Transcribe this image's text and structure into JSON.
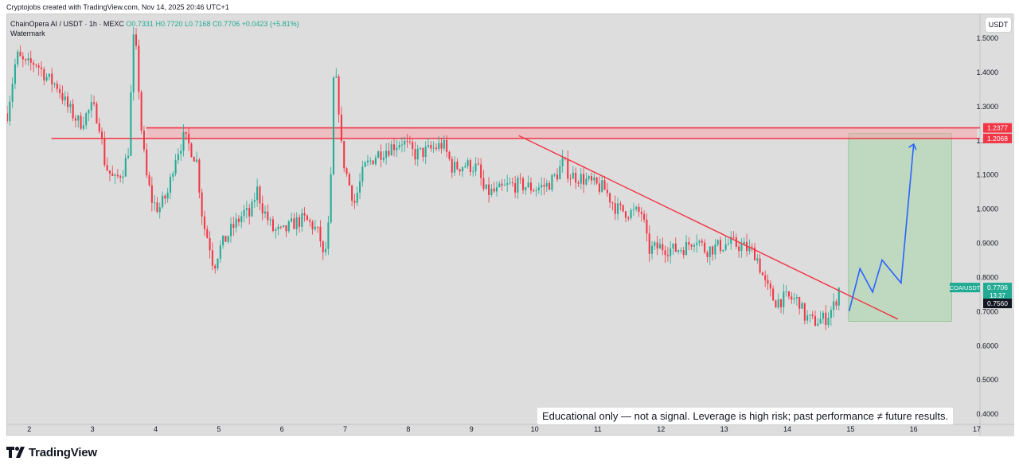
{
  "header": {
    "caption": "Cryptojobs created with TradingView.com, Nov 14, 2025 20:46 UTC+1",
    "symbol_line": "ChainOpera AI / USDT · 1h · MEXC",
    "ohlc": {
      "o": "O0.7331",
      "h": "H0.7720",
      "l": "L0.7168",
      "c": "C0.7706",
      "change": "+0.0423 (+5.81%)"
    },
    "watermark": "Watermark"
  },
  "price_scale": {
    "currency_label": "USDT"
  },
  "note": "Educational only — not a signal. Leverage is high risk; past performance ≠ future results.",
  "brand": {
    "name": "TradingView"
  },
  "colors": {
    "up": "#22ab94",
    "down": "#f23645",
    "resistance": "#f23645",
    "trendline": "#f23645",
    "projection": "#2962ff",
    "target_zone": "#a5d6a7"
  },
  "chart_data": {
    "type": "candlestick",
    "title": "ChainOpera AI / USDT",
    "timeframe": "1h",
    "exchange": "MEXC",
    "x_tick_labels": [
      "2",
      "3",
      "4",
      "5",
      "6",
      "7",
      "8",
      "9",
      "10",
      "11",
      "12",
      "13",
      "14",
      "15",
      "16",
      "17"
    ],
    "y_tick_labels": [
      "1.5000",
      "1.4000",
      "1.3000",
      "1.2000",
      "1.1000",
      "1.0000",
      "0.9000",
      "0.8000",
      "0.7000",
      "0.6000",
      "0.5000",
      "0.4000"
    ],
    "ylim": [
      0.37,
      1.57
    ],
    "xlim": [
      1.65,
      17.05
    ],
    "price_path": [
      [
        1.65,
        1.28
      ],
      [
        1.8,
        1.45
      ],
      [
        1.95,
        1.42
      ],
      [
        2.1,
        1.43
      ],
      [
        2.3,
        1.38
      ],
      [
        2.45,
        1.36
      ],
      [
        2.6,
        1.3
      ],
      [
        2.8,
        1.25
      ],
      [
        3.0,
        1.3
      ],
      [
        3.1,
        1.26
      ],
      [
        3.2,
        1.13
      ],
      [
        3.35,
        1.08
      ],
      [
        3.5,
        1.12
      ],
      [
        3.6,
        1.2
      ],
      [
        3.62,
        1.52
      ],
      [
        3.7,
        1.45
      ],
      [
        3.78,
        1.22
      ],
      [
        3.85,
        1.1
      ],
      [
        3.95,
        1.02
      ],
      [
        4.05,
        1.0
      ],
      [
        4.2,
        1.05
      ],
      [
        4.3,
        1.15
      ],
      [
        4.45,
        1.21
      ],
      [
        4.55,
        1.18
      ],
      [
        4.65,
        1.14
      ],
      [
        4.75,
        0.96
      ],
      [
        4.85,
        0.9
      ],
      [
        4.92,
        0.83
      ],
      [
        5.0,
        0.88
      ],
      [
        5.2,
        0.94
      ],
      [
        5.4,
        0.99
      ],
      [
        5.5,
        0.98
      ],
      [
        5.6,
        1.06
      ],
      [
        5.7,
        1.0
      ],
      [
        5.85,
        0.94
      ],
      [
        6.0,
        0.93
      ],
      [
        6.2,
        0.96
      ],
      [
        6.35,
        0.97
      ],
      [
        6.5,
        0.95
      ],
      [
        6.6,
        0.92
      ],
      [
        6.65,
        0.86
      ],
      [
        6.72,
        0.9
      ],
      [
        6.78,
        1.1
      ],
      [
        6.82,
        1.4
      ],
      [
        6.88,
        1.35
      ],
      [
        6.95,
        1.16
      ],
      [
        7.05,
        1.08
      ],
      [
        7.15,
        1.02
      ],
      [
        7.3,
        1.12
      ],
      [
        7.5,
        1.16
      ],
      [
        7.7,
        1.18
      ],
      [
        7.9,
        1.2
      ],
      [
        8.1,
        1.16
      ],
      [
        8.3,
        1.17
      ],
      [
        8.55,
        1.19
      ],
      [
        8.7,
        1.12
      ],
      [
        8.9,
        1.13
      ],
      [
        9.1,
        1.12
      ],
      [
        9.2,
        1.05
      ],
      [
        9.4,
        1.05
      ],
      [
        9.6,
        1.07
      ],
      [
        9.8,
        1.07
      ],
      [
        10.0,
        1.06
      ],
      [
        10.2,
        1.07
      ],
      [
        10.35,
        1.1
      ],
      [
        10.45,
        1.14
      ],
      [
        10.55,
        1.1
      ],
      [
        10.75,
        1.09
      ],
      [
        10.95,
        1.07
      ],
      [
        11.1,
        1.06
      ],
      [
        11.3,
        1.0
      ],
      [
        11.5,
        0.99
      ],
      [
        11.7,
        0.99
      ],
      [
        11.8,
        0.88
      ],
      [
        12.0,
        0.89
      ],
      [
        12.2,
        0.88
      ],
      [
        12.4,
        0.89
      ],
      [
        12.55,
        0.92
      ],
      [
        12.7,
        0.88
      ],
      [
        12.9,
        0.89
      ],
      [
        13.1,
        0.9
      ],
      [
        13.3,
        0.89
      ],
      [
        13.5,
        0.87
      ],
      [
        13.65,
        0.78
      ],
      [
        13.8,
        0.73
      ],
      [
        14.0,
        0.74
      ],
      [
        14.2,
        0.73
      ],
      [
        14.25,
        0.69
      ],
      [
        14.4,
        0.67
      ],
      [
        14.6,
        0.68
      ],
      [
        14.75,
        0.72
      ],
      [
        14.82,
        0.77
      ]
    ],
    "last_price": "0.7706",
    "symbol_tag": "COAIUSDT",
    "countdown": "13:37",
    "secondary_price": "0.7560",
    "resistance_levels": [
      {
        "label": "1.2377",
        "value": 1.2377
      },
      {
        "label": "1.2068",
        "value": 1.2068
      }
    ],
    "resistance_zone": {
      "x0": 3.85,
      "x1": 17.0,
      "y0": 1.2068,
      "y1": 1.2377
    },
    "trendline": {
      "x0": 9.75,
      "y0": 1.215,
      "x1": 15.75,
      "y1": 0.678
    },
    "target_zone": {
      "x0": 14.97,
      "x1": 16.6,
      "y0": 0.672,
      "y1": 1.2215
    },
    "projection_path": [
      [
        14.98,
        0.702
      ],
      [
        15.15,
        0.826
      ],
      [
        15.35,
        0.757
      ],
      [
        15.5,
        0.851
      ],
      [
        15.8,
        0.784
      ],
      [
        16.0,
        1.19
      ]
    ]
  }
}
